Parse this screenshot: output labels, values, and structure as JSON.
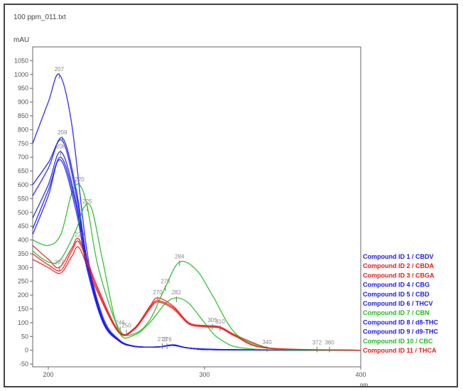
{
  "window": {
    "file_title": "100 ppm_011.txt",
    "unit_label": "mAU",
    "x_unit_label": "nm"
  },
  "chart_data": {
    "type": "line",
    "title": "",
    "xlabel": "nm",
    "ylabel": "mAU",
    "xlim": [
      190,
      400
    ],
    "ylim": [
      -60,
      1100
    ],
    "x_ticks": [
      200,
      300,
      400
    ],
    "y_ticks": [
      -50,
      0,
      50,
      100,
      150,
      200,
      250,
      300,
      350,
      400,
      450,
      500,
      550,
      600,
      650,
      700,
      750,
      800,
      850,
      900,
      950,
      1000,
      1050
    ],
    "grid": false,
    "legend_position": "right",
    "series": [
      {
        "name": "Compound ID 1 / CBDV",
        "color": "#1a1aee",
        "x": [
          190,
          200,
          207,
          215,
          225,
          235,
          245,
          255,
          270,
          280,
          290,
          310,
          330,
          350,
          400
        ],
        "y": [
          750,
          900,
          1000,
          820,
          350,
          120,
          40,
          15,
          12,
          20,
          8,
          3,
          1,
          0,
          0
        ]
      },
      {
        "name": "Compound ID 2 / CBDA",
        "color": "#ee1a1a",
        "x": [
          190,
          200,
          207,
          215,
          220,
          230,
          245,
          255,
          265,
          270,
          280,
          290,
          300,
          310,
          320,
          340,
          360,
          400
        ],
        "y": [
          380,
          330,
          300,
          370,
          400,
          250,
          70,
          80,
          160,
          190,
          160,
          100,
          90,
          85,
          55,
          10,
          2,
          0
        ]
      },
      {
        "name": "Compound ID 3 / CBGA",
        "color": "#ee1a1a",
        "x": [
          190,
          200,
          208,
          215,
          220,
          230,
          245,
          255,
          265,
          270,
          280,
          290,
          300,
          310,
          320,
          340,
          400
        ],
        "y": [
          330,
          300,
          280,
          340,
          370,
          230,
          65,
          75,
          150,
          175,
          150,
          95,
          85,
          80,
          50,
          8,
          0
        ]
      },
      {
        "name": "Compound ID 4 / CBG",
        "color": "#1a1aee",
        "x": [
          190,
          200,
          209,
          218,
          225,
          235,
          245,
          255,
          270,
          280,
          290,
          310,
          400
        ],
        "y": [
          600,
          680,
          760,
          560,
          320,
          110,
          35,
          14,
          12,
          18,
          8,
          2,
          0
        ]
      },
      {
        "name": "Compound ID 5 / CBD",
        "color": "#1a1aee",
        "x": [
          190,
          200,
          209,
          218,
          225,
          235,
          245,
          255,
          270,
          280,
          290,
          310,
          400
        ],
        "y": [
          560,
          660,
          770,
          580,
          320,
          105,
          35,
          14,
          12,
          18,
          8,
          2,
          0
        ]
      },
      {
        "name": "Compound ID 6 / THCV",
        "color": "#1a1aee",
        "x": [
          190,
          200,
          208,
          217,
          225,
          235,
          245,
          255,
          270,
          280,
          290,
          310,
          400
        ],
        "y": [
          480,
          600,
          720,
          560,
          320,
          110,
          38,
          15,
          12,
          18,
          8,
          2,
          0
        ]
      },
      {
        "name": "Compound ID 7 / CBN",
        "color": "#22bb22",
        "x": [
          190,
          200,
          208,
          215,
          220,
          225,
          232,
          245,
          255,
          265,
          275,
          284,
          295,
          305,
          320,
          340,
          360,
          400
        ],
        "y": [
          400,
          380,
          420,
          570,
          600,
          520,
          300,
          80,
          60,
          110,
          230,
          320,
          290,
          200,
          60,
          10,
          2,
          0
        ]
      },
      {
        "name": "Compound ID 8 / d8-THC",
        "color": "#1a1aee",
        "x": [
          190,
          200,
          208,
          218,
          225,
          235,
          245,
          255,
          270,
          280,
          290,
          310,
          400
        ],
        "y": [
          420,
          560,
          700,
          520,
          300,
          105,
          35,
          14,
          12,
          18,
          8,
          2,
          0
        ]
      },
      {
        "name": "Compound ID 9 / d9-THC",
        "color": "#1a1aee",
        "x": [
          190,
          200,
          208,
          218,
          225,
          235,
          245,
          255,
          270,
          280,
          290,
          310,
          400
        ],
        "y": [
          440,
          580,
          690,
          500,
          290,
          100,
          35,
          14,
          12,
          18,
          8,
          2,
          0
        ]
      },
      {
        "name": "Compound ID 10 / CBC",
        "color": "#22bb22",
        "x": [
          190,
          200,
          208,
          218,
          223,
          228,
          235,
          245,
          255,
          265,
          275,
          282,
          290,
          300,
          310,
          330,
          400
        ],
        "y": [
          360,
          320,
          330,
          440,
          520,
          510,
          320,
          70,
          55,
          100,
          170,
          190,
          170,
          100,
          40,
          5,
          0
        ]
      },
      {
        "name": "Compound ID 11 / THCA",
        "color": "#ee1a1a",
        "x": [
          190,
          200,
          208,
          215,
          220,
          230,
          245,
          255,
          265,
          270,
          280,
          290,
          300,
          310,
          320,
          340,
          400
        ],
        "y": [
          350,
          310,
          290,
          360,
          390,
          240,
          68,
          78,
          155,
          180,
          155,
          98,
          88,
          82,
          52,
          9,
          0
        ]
      }
    ],
    "annotations": [
      {
        "text": "207",
        "x": 207,
        "y": 1000
      },
      {
        "text": "209",
        "x": 209,
        "y": 770
      },
      {
        "text": "208",
        "x": 208,
        "y": 720
      },
      {
        "text": "220",
        "x": 220,
        "y": 600
      },
      {
        "text": "225",
        "x": 225,
        "y": 520
      },
      {
        "text": "220",
        "x": 220,
        "y": 400
      },
      {
        "text": "207",
        "x": 207,
        "y": 300
      },
      {
        "text": "246",
        "x": 246,
        "y": 80
      },
      {
        "text": "250",
        "x": 250,
        "y": 70
      },
      {
        "text": "270",
        "x": 270,
        "y": 190
      },
      {
        "text": "275",
        "x": 275,
        "y": 230
      },
      {
        "text": "284",
        "x": 284,
        "y": 320
      },
      {
        "text": "282",
        "x": 282,
        "y": 190
      },
      {
        "text": "273",
        "x": 273,
        "y": 20
      },
      {
        "text": "276",
        "x": 276,
        "y": 20
      },
      {
        "text": "305",
        "x": 305,
        "y": 90
      },
      {
        "text": "310",
        "x": 310,
        "y": 85
      },
      {
        "text": "340",
        "x": 340,
        "y": 10
      },
      {
        "text": "372",
        "x": 372,
        "y": 8
      },
      {
        "text": "380",
        "x": 380,
        "y": 8
      }
    ]
  }
}
